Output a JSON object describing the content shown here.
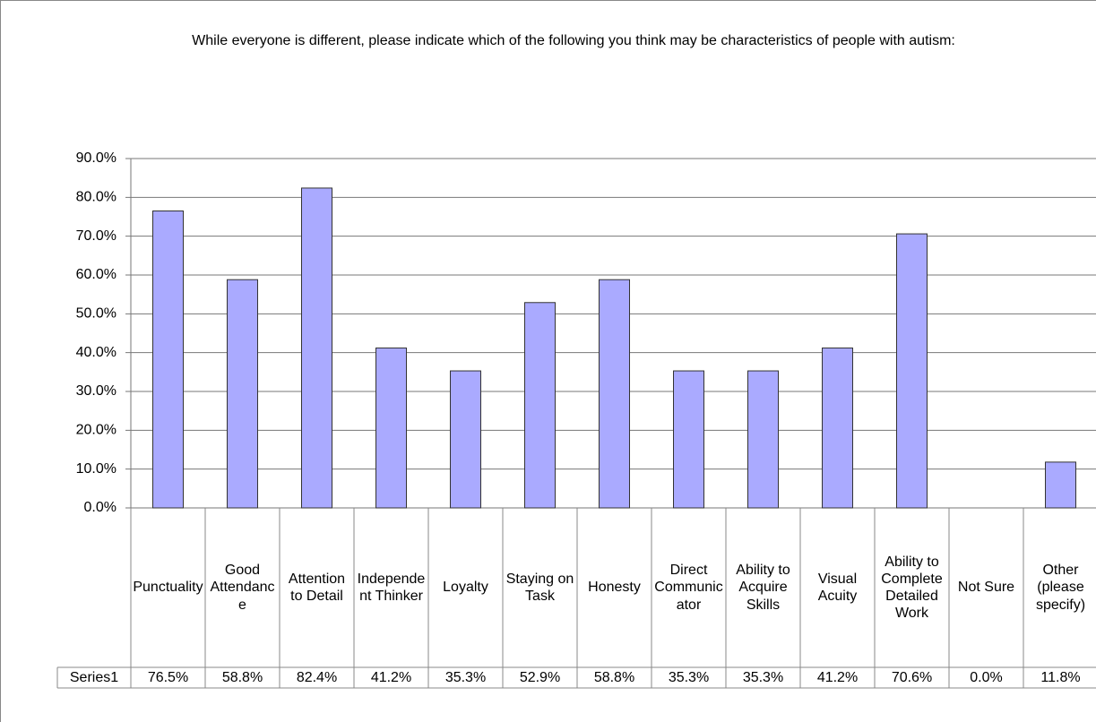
{
  "chart_data": {
    "type": "bar",
    "title": "While everyone is different, please indicate which of the following you think may be characteristics of people with autism:",
    "categories": [
      "Punctuality",
      "Good Attendance",
      "Attention to Detail",
      "Independent Thinker",
      "Loyalty",
      "Staying on Task",
      "Honesty",
      "Direct Communicator",
      "Ability to Acquire Skills",
      "Visual Acuity",
      "Ability to Complete Detailed Work",
      "Not Sure",
      "Other (please specify)"
    ],
    "series": [
      {
        "name": "Series1",
        "color": "#aaaaff",
        "values": [
          76.5,
          58.8,
          82.4,
          41.2,
          35.3,
          52.9,
          58.8,
          35.3,
          35.3,
          41.2,
          70.6,
          0.0,
          11.8
        ],
        "value_labels": [
          "76.5%",
          "58.8%",
          "82.4%",
          "41.2%",
          "35.3%",
          "52.9%",
          "58.8%",
          "35.3%",
          "35.3%",
          "41.2%",
          "70.6%",
          "0.0%",
          "11.8%"
        ]
      }
    ],
    "ylim": [
      0,
      90
    ],
    "yticks": [
      {
        "value": 0,
        "label": "0.0%"
      },
      {
        "value": 10,
        "label": "10.0%"
      },
      {
        "value": 20,
        "label": "20.0%"
      },
      {
        "value": 30,
        "label": "30.0%"
      },
      {
        "value": 40,
        "label": "40.0%"
      },
      {
        "value": 50,
        "label": "50.0%"
      },
      {
        "value": 60,
        "label": "60.0%"
      },
      {
        "value": 70,
        "label": "70.0%"
      },
      {
        "value": 80,
        "label": "80.0%"
      },
      {
        "value": 90,
        "label": "90.0%"
      }
    ],
    "grid": true
  }
}
